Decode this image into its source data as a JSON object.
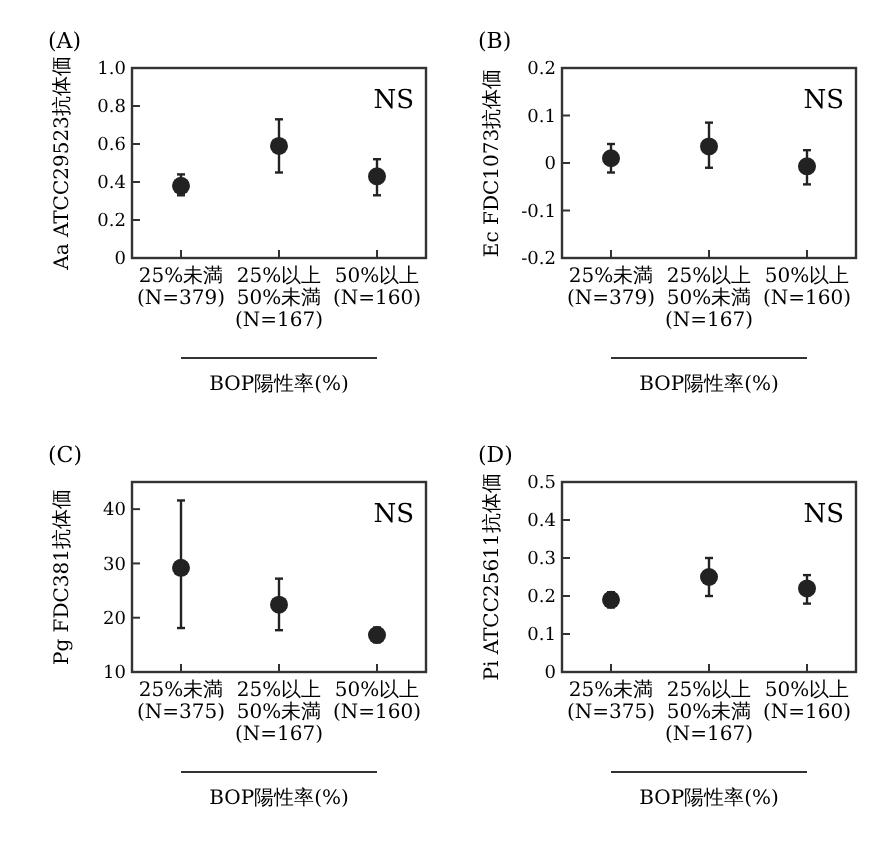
{
  "chart_data": [
    {
      "type": "scatter",
      "title": "(A)",
      "ylabel": "Aa ATCC29523抗体価",
      "xlabel": "BOP陽性率(%)",
      "categories": [
        "25%未満\n(N=379)",
        "25%以上\n50%未満\n(N=167)",
        "50%以上\n(N=160)"
      ],
      "values": [
        0.38,
        0.59,
        0.43
      ],
      "errors": [
        [
          0.33,
          0.44
        ],
        [
          0.45,
          0.73
        ],
        [
          0.33,
          0.52
        ]
      ],
      "color": "#222222",
      "marker": "circle",
      "ylim": [
        0,
        1
      ],
      "yticks": [
        0,
        0.2,
        0.4,
        0.6,
        0.8,
        {
          "value": 1,
          "label": "1.0"
        }
      ],
      "annotations": [
        "NS"
      ]
    },
    {
      "type": "scatter",
      "title": "(B)",
      "ylabel": "Ec FDC1073抗体価",
      "xlabel": "BOP陽性率(%)",
      "categories": [
        "25%未満\n(N=379)",
        "25%以上\n50%未満\n(N=167)",
        "50%以上\n(N=160)"
      ],
      "values": [
        0.01,
        0.035,
        -0.007
      ],
      "errors": [
        [
          -0.02,
          0.04
        ],
        [
          -0.01,
          0.085
        ],
        [
          -0.045,
          0.027
        ]
      ],
      "color": "#222222",
      "marker": "circle",
      "ylim": [
        -0.2,
        0.2
      ],
      "yticks": [
        -0.2,
        -0.1,
        0,
        0.1,
        0.2
      ],
      "annotations": [
        "NS"
      ]
    },
    {
      "type": "scatter",
      "title": "(C)",
      "ylabel": "Pg FDC381抗体価",
      "xlabel": "BOP陽性率(%)",
      "categories": [
        "25%未満\n(N=375)",
        "25%以上\n50%未満\n(N=167)",
        "50%以上\n(N=160)"
      ],
      "values": [
        29.2,
        22.4,
        16.8
      ],
      "errors": [
        [
          18.1,
          41.6
        ],
        [
          17.7,
          27.2
        ],
        [
          15.5,
          18.2
        ]
      ],
      "color": "#222222",
      "marker": "circle",
      "ylim": [
        10,
        45
      ],
      "yticks": [
        10,
        20,
        30,
        40
      ],
      "annotations": [
        "NS"
      ]
    },
    {
      "type": "scatter",
      "title": "(D)",
      "ylabel": "Pi ATCC25611抗体価",
      "xlabel": "BOP陽性率(%)",
      "categories": [
        "25%未満\n(N=375)",
        "25%以上\n50%未満\n(N=167)",
        "50%以上\n(N=160)"
      ],
      "values": [
        0.19,
        0.25,
        0.22
      ],
      "errors": [
        [
          0.17,
          0.21
        ],
        [
          0.2,
          0.3
        ],
        [
          0.18,
          0.255
        ]
      ],
      "color": "#222222",
      "marker": "circle",
      "ylim": [
        0,
        0.5
      ],
      "yticks": [
        0,
        0.1,
        0.2,
        0.3,
        0.4,
        0.5
      ],
      "annotations": [
        "NS"
      ]
    }
  ]
}
